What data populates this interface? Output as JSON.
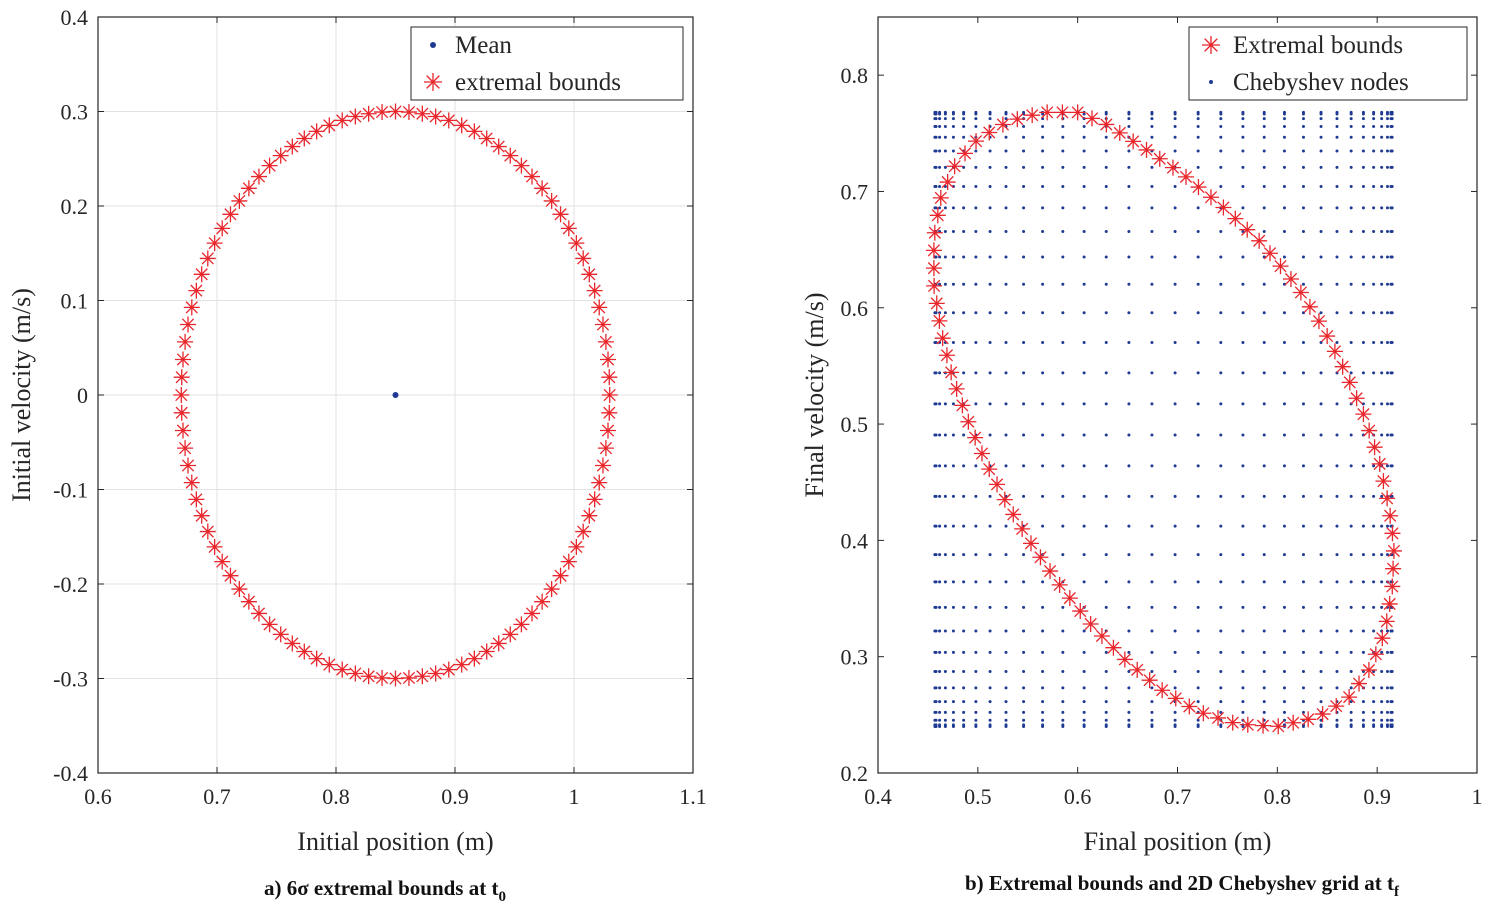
{
  "chart_data": [
    {
      "type": "scatter",
      "caption": "a) 6σ extremal bounds at t",
      "caption_subscript": "0",
      "xlabel": "Initial position (m)",
      "ylabel": "Initial velocity (m/s)",
      "xlim": [
        0.6,
        1.1
      ],
      "ylim": [
        -0.4,
        0.4
      ],
      "xticks": [
        "0.6",
        "0.7",
        "0.8",
        "0.9",
        "1",
        "1.1"
      ],
      "yticks": [
        "-0.4",
        "-0.3",
        "-0.2",
        "-0.1",
        "0",
        "0.1",
        "0.2",
        "0.3",
        "0.4"
      ],
      "grid": true,
      "legend_position": "top-right",
      "series": [
        {
          "name": "Mean",
          "marker": "dot",
          "color": "#1f3a93",
          "points": [
            [
              0.85,
              0.0
            ]
          ]
        },
        {
          "name": "extremal bounds",
          "marker": "asterisk",
          "color": "#e8262b",
          "shape": "ellipse",
          "center": [
            0.85,
            0.0
          ],
          "semi_axes": [
            0.18,
            0.3
          ],
          "count": 100
        }
      ]
    },
    {
      "type": "scatter",
      "caption": "b) Extremal bounds and 2D Chebyshev grid at t",
      "caption_subscript": "f",
      "xlabel": "Final position (m)",
      "ylabel": "Final velocity (m/s)",
      "xlim": [
        0.4,
        1.0
      ],
      "ylim": [
        0.2,
        0.85
      ],
      "xticks": [
        "0.4",
        "0.5",
        "0.6",
        "0.7",
        "0.8",
        "0.9",
        "1"
      ],
      "yticks": [
        "0.2",
        "0.3",
        "0.4",
        "0.5",
        "0.6",
        "0.7",
        "0.8"
      ],
      "grid": false,
      "legend_position": "top-right",
      "series": [
        {
          "name": "Extremal bounds",
          "marker": "asterisk",
          "color": "#e8262b",
          "shape": "polyline",
          "points": [
            [
              0.6,
              0.768
            ],
            [
              0.628,
              0.758
            ],
            [
              0.665,
              0.738
            ],
            [
              0.705,
              0.715
            ],
            [
              0.745,
              0.687
            ],
            [
              0.785,
              0.655
            ],
            [
              0.82,
              0.618
            ],
            [
              0.845,
              0.584
            ],
            [
              0.868,
              0.545
            ],
            [
              0.888,
              0.505
            ],
            [
              0.902,
              0.468
            ],
            [
              0.912,
              0.428
            ],
            [
              0.917,
              0.395
            ],
            [
              0.915,
              0.358
            ],
            [
              0.908,
              0.322
            ],
            [
              0.893,
              0.29
            ],
            [
              0.87,
              0.263
            ],
            [
              0.84,
              0.248
            ],
            [
              0.8,
              0.24
            ],
            [
              0.76,
              0.242
            ],
            [
              0.72,
              0.253
            ],
            [
              0.683,
              0.272
            ],
            [
              0.648,
              0.297
            ],
            [
              0.615,
              0.326
            ],
            [
              0.585,
              0.358
            ],
            [
              0.555,
              0.395
            ],
            [
              0.53,
              0.43
            ],
            [
              0.508,
              0.467
            ],
            [
              0.489,
              0.505
            ],
            [
              0.474,
              0.542
            ],
            [
              0.463,
              0.58
            ],
            [
              0.456,
              0.62
            ],
            [
              0.456,
              0.66
            ],
            [
              0.463,
              0.695
            ],
            [
              0.478,
              0.724
            ],
            [
              0.5,
              0.745
            ],
            [
              0.53,
              0.76
            ],
            [
              0.565,
              0.768
            ],
            [
              0.6,
              0.768
            ]
          ],
          "count": 100
        },
        {
          "name": "Chebyshev nodes",
          "marker": "dot",
          "color": "#1f3a93",
          "x_range": [
            0.457,
            0.915
          ],
          "y_range": [
            0.24,
            0.768
          ],
          "nx": 32,
          "ny": 32
        }
      ]
    }
  ]
}
